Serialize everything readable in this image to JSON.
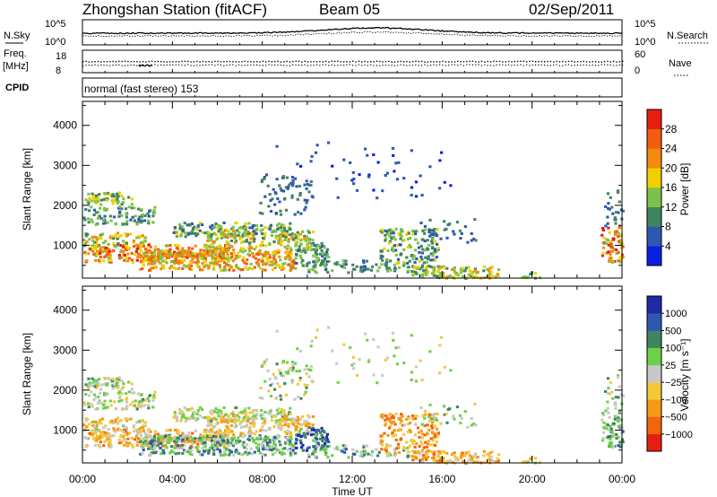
{
  "header": {
    "station": "Zhongshan Station (fitACF)",
    "beam": "Beam 05",
    "date": "02/Sep/2011"
  },
  "top_panels": {
    "nsky_label": "N.Sky",
    "nsearch_label": "N.Search",
    "nsky_ticks": [
      "10^5",
      "10^0"
    ],
    "nsearch_ticks": [
      "10^5",
      "10^0"
    ],
    "freq_label_1": "Freq.",
    "freq_label_2": "[MHz]",
    "freq_ticks": [
      "18",
      "8"
    ],
    "nave_label": "Nave",
    "nave_ticks": [
      "60",
      "0"
    ],
    "cpid_label": "CPID",
    "cpid_text": "normal (fast stereo) 153"
  },
  "colors": {
    "power": [
      "#0a1fe6",
      "#2e57b0",
      "#3f8560",
      "#7cc24a",
      "#f0d000",
      "#f58a10",
      "#f25d10",
      "#e61e10"
    ],
    "velocity": [
      "#e61e10",
      "#f2640e",
      "#f59a14",
      "#f5c83a",
      "#c8c8c8",
      "#6cd04a",
      "#3f8560",
      "#2e57b0",
      "#1f2aa8"
    ],
    "axis": "#000000"
  },
  "chart_data": [
    {
      "type": "heatmap",
      "name": "power",
      "ylabel": "Slant Range [km]",
      "yticks": [
        "1000",
        "2000",
        "3000",
        "4000"
      ],
      "ytick_values": [
        1000,
        2000,
        3000,
        4000
      ],
      "ylim": [
        180,
        4600
      ],
      "xlim": [
        0,
        24
      ],
      "colorbar_label": "Power [dB]",
      "colorbar_ticks": [
        "4",
        "8",
        "12",
        "16",
        "20",
        "24",
        "28"
      ],
      "colorbar_range": [
        0,
        32
      ]
    },
    {
      "type": "heatmap",
      "name": "velocity",
      "ylabel": "Slant Range [km]",
      "yticks": [
        "1000",
        "2000",
        "3000",
        "4000"
      ],
      "ytick_values": [
        1000,
        2000,
        3000,
        4000
      ],
      "ylim": [
        180,
        4600
      ],
      "xlim": [
        0,
        24
      ],
      "xlabel": "Time UT",
      "xticks": [
        "00:00",
        "04:00",
        "08:00",
        "12:00",
        "16:00",
        "20:00",
        "00:00"
      ],
      "xtick_values": [
        0,
        4,
        8,
        12,
        16,
        20,
        24
      ],
      "colorbar_label": "Velocity [m s⁻¹]",
      "colorbar_ticks": [
        "1000",
        "500",
        "100",
        "25",
        "−25",
        "−100",
        "−500",
        "−1000"
      ]
    }
  ],
  "scatter_regions": [
    {
      "t0": 0.0,
      "t1": 2.2,
      "r0": 2050,
      "r1": 2350,
      "d": 0.75,
      "p": [
        8,
        20
      ],
      "v": 0.1
    },
    {
      "t0": 0.0,
      "t1": 3.2,
      "r0": 1550,
      "r1": 2000,
      "d": 0.55,
      "p": [
        6,
        16
      ],
      "v": 0.1
    },
    {
      "t0": 0.0,
      "t1": 2.8,
      "r0": 1000,
      "r1": 1350,
      "d": 0.6,
      "p": [
        10,
        22
      ],
      "v": -0.3
    },
    {
      "t0": 0.0,
      "t1": 6.5,
      "r0": 600,
      "r1": 1050,
      "d": 0.85,
      "p": [
        14,
        30
      ],
      "v": -0.6
    },
    {
      "t0": 2.5,
      "t1": 9.5,
      "r0": 400,
      "r1": 900,
      "d": 0.85,
      "p": [
        12,
        28
      ],
      "v": 0.6
    },
    {
      "t0": 4.0,
      "t1": 9.3,
      "r0": 1250,
      "r1": 1600,
      "d": 0.7,
      "p": [
        6,
        18
      ],
      "v": 0.05
    },
    {
      "t0": 5.5,
      "t1": 10.2,
      "r0": 900,
      "r1": 1400,
      "d": 0.6,
      "p": [
        10,
        22
      ],
      "v": -0.4
    },
    {
      "t0": 7.8,
      "t1": 10.2,
      "r0": 1800,
      "r1": 2800,
      "d": 0.25,
      "p": [
        4,
        12
      ],
      "v": 0.1
    },
    {
      "t0": 9.4,
      "t1": 11.0,
      "r0": 500,
      "r1": 1100,
      "d": 0.7,
      "p": [
        6,
        16
      ],
      "v": 1.2
    },
    {
      "t0": 10.0,
      "t1": 14.5,
      "r0": 350,
      "r1": 650,
      "d": 0.45,
      "p": [
        6,
        16
      ],
      "v": 0.5
    },
    {
      "t0": 13.2,
      "t1": 15.8,
      "r0": 450,
      "r1": 1450,
      "d": 0.55,
      "p": [
        6,
        18
      ],
      "v": -0.9
    },
    {
      "t0": 14.6,
      "t1": 18.5,
      "r0": 200,
      "r1": 500,
      "d": 0.8,
      "p": [
        10,
        22
      ],
      "v": -0.6
    },
    {
      "t0": 15.0,
      "t1": 17.5,
      "r0": 1100,
      "r1": 1700,
      "d": 0.2,
      "p": [
        4,
        10
      ],
      "v": 0.3
    },
    {
      "t0": 19.5,
      "t1": 20.5,
      "r0": 200,
      "r1": 350,
      "d": 0.6,
      "p": [
        8,
        20
      ],
      "v": -0.2
    },
    {
      "t0": 23.0,
      "t1": 24.0,
      "r0": 600,
      "r1": 1500,
      "d": 0.7,
      "p": [
        12,
        30
      ],
      "v": 0.6
    },
    {
      "t0": 23.2,
      "t1": 24.0,
      "r0": 1500,
      "r1": 2500,
      "d": 0.25,
      "p": [
        4,
        12
      ],
      "v": 0.3
    },
    {
      "t0": 8.5,
      "t1": 16.5,
      "r0": 2200,
      "r1": 3600,
      "d": 0.04,
      "p": [
        2,
        8
      ],
      "v": 0.0
    }
  ]
}
